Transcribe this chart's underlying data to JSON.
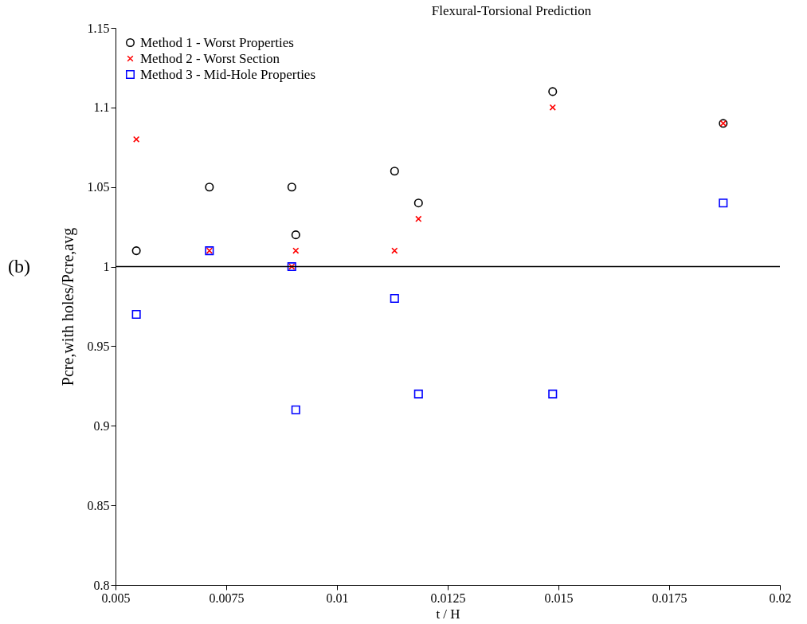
{
  "chart_data": {
    "type": "scatter",
    "title": "Flexural-Torsional Prediction",
    "xlabel": "t / H",
    "ylabel": "Pcre,with holes/Pcre,avg",
    "x": [
      0.00547,
      0.00712,
      0.00898,
      0.00907,
      0.0113,
      0.01184,
      0.01487,
      0.01872
    ],
    "series": [
      {
        "name": "Method 1 - Worst Properties",
        "color": "#000000",
        "marker": "circle",
        "values": [
          1.01,
          1.05,
          1.05,
          1.02,
          1.06,
          1.04,
          1.11,
          1.09
        ]
      },
      {
        "name": "Method 2 - Worst Section",
        "color": "#ff0000",
        "marker": "cross",
        "values": [
          1.08,
          1.01,
          1.0,
          1.01,
          1.01,
          1.03,
          1.1,
          1.09
        ]
      },
      {
        "name": "Method 3 - Mid-Hole Properties",
        "color": "#0000ff",
        "marker": "square",
        "values": [
          0.97,
          1.01,
          1.0,
          0.91,
          0.98,
          0.92,
          0.92,
          1.04
        ]
      }
    ],
    "xlim": [
      0.005,
      0.02
    ],
    "xticks": [
      0.005,
      0.0075,
      0.01,
      0.0125,
      0.015,
      0.0175,
      0.02
    ],
    "ylim": [
      0.8,
      1.15
    ],
    "yticks": [
      0.8,
      0.85,
      0.9,
      0.95,
      {
        "value": 1.0,
        "label": "1"
      },
      1.05,
      {
        "value": 1.1,
        "label": "1.1"
      },
      1.15
    ],
    "ref_lines": [
      {
        "axis": "y",
        "value": 1.0,
        "color": "#000000"
      }
    ],
    "annotations": [
      "(b)"
    ],
    "grid": false,
    "legend": "top left"
  }
}
